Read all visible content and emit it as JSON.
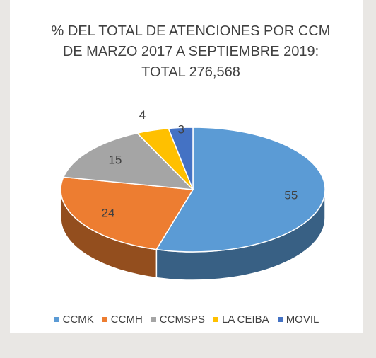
{
  "chart_data": {
    "type": "pie3d",
    "title": "% DEL TOTAL DE ATENCIONES POR CCM DE MARZO 2017 A SEPTIEMBRE 2019: TOTAL 276,568",
    "categories": [
      "CCMK",
      "CCMH",
      "CCMSPS",
      "LA CEIBA",
      "MOVIL"
    ],
    "values": [
      55,
      24,
      15,
      4,
      3
    ],
    "colors": [
      "#5b9bd5",
      "#ed7d31",
      "#a5a5a5",
      "#ffc000",
      "#4472c4"
    ],
    "legend": "bottom"
  }
}
